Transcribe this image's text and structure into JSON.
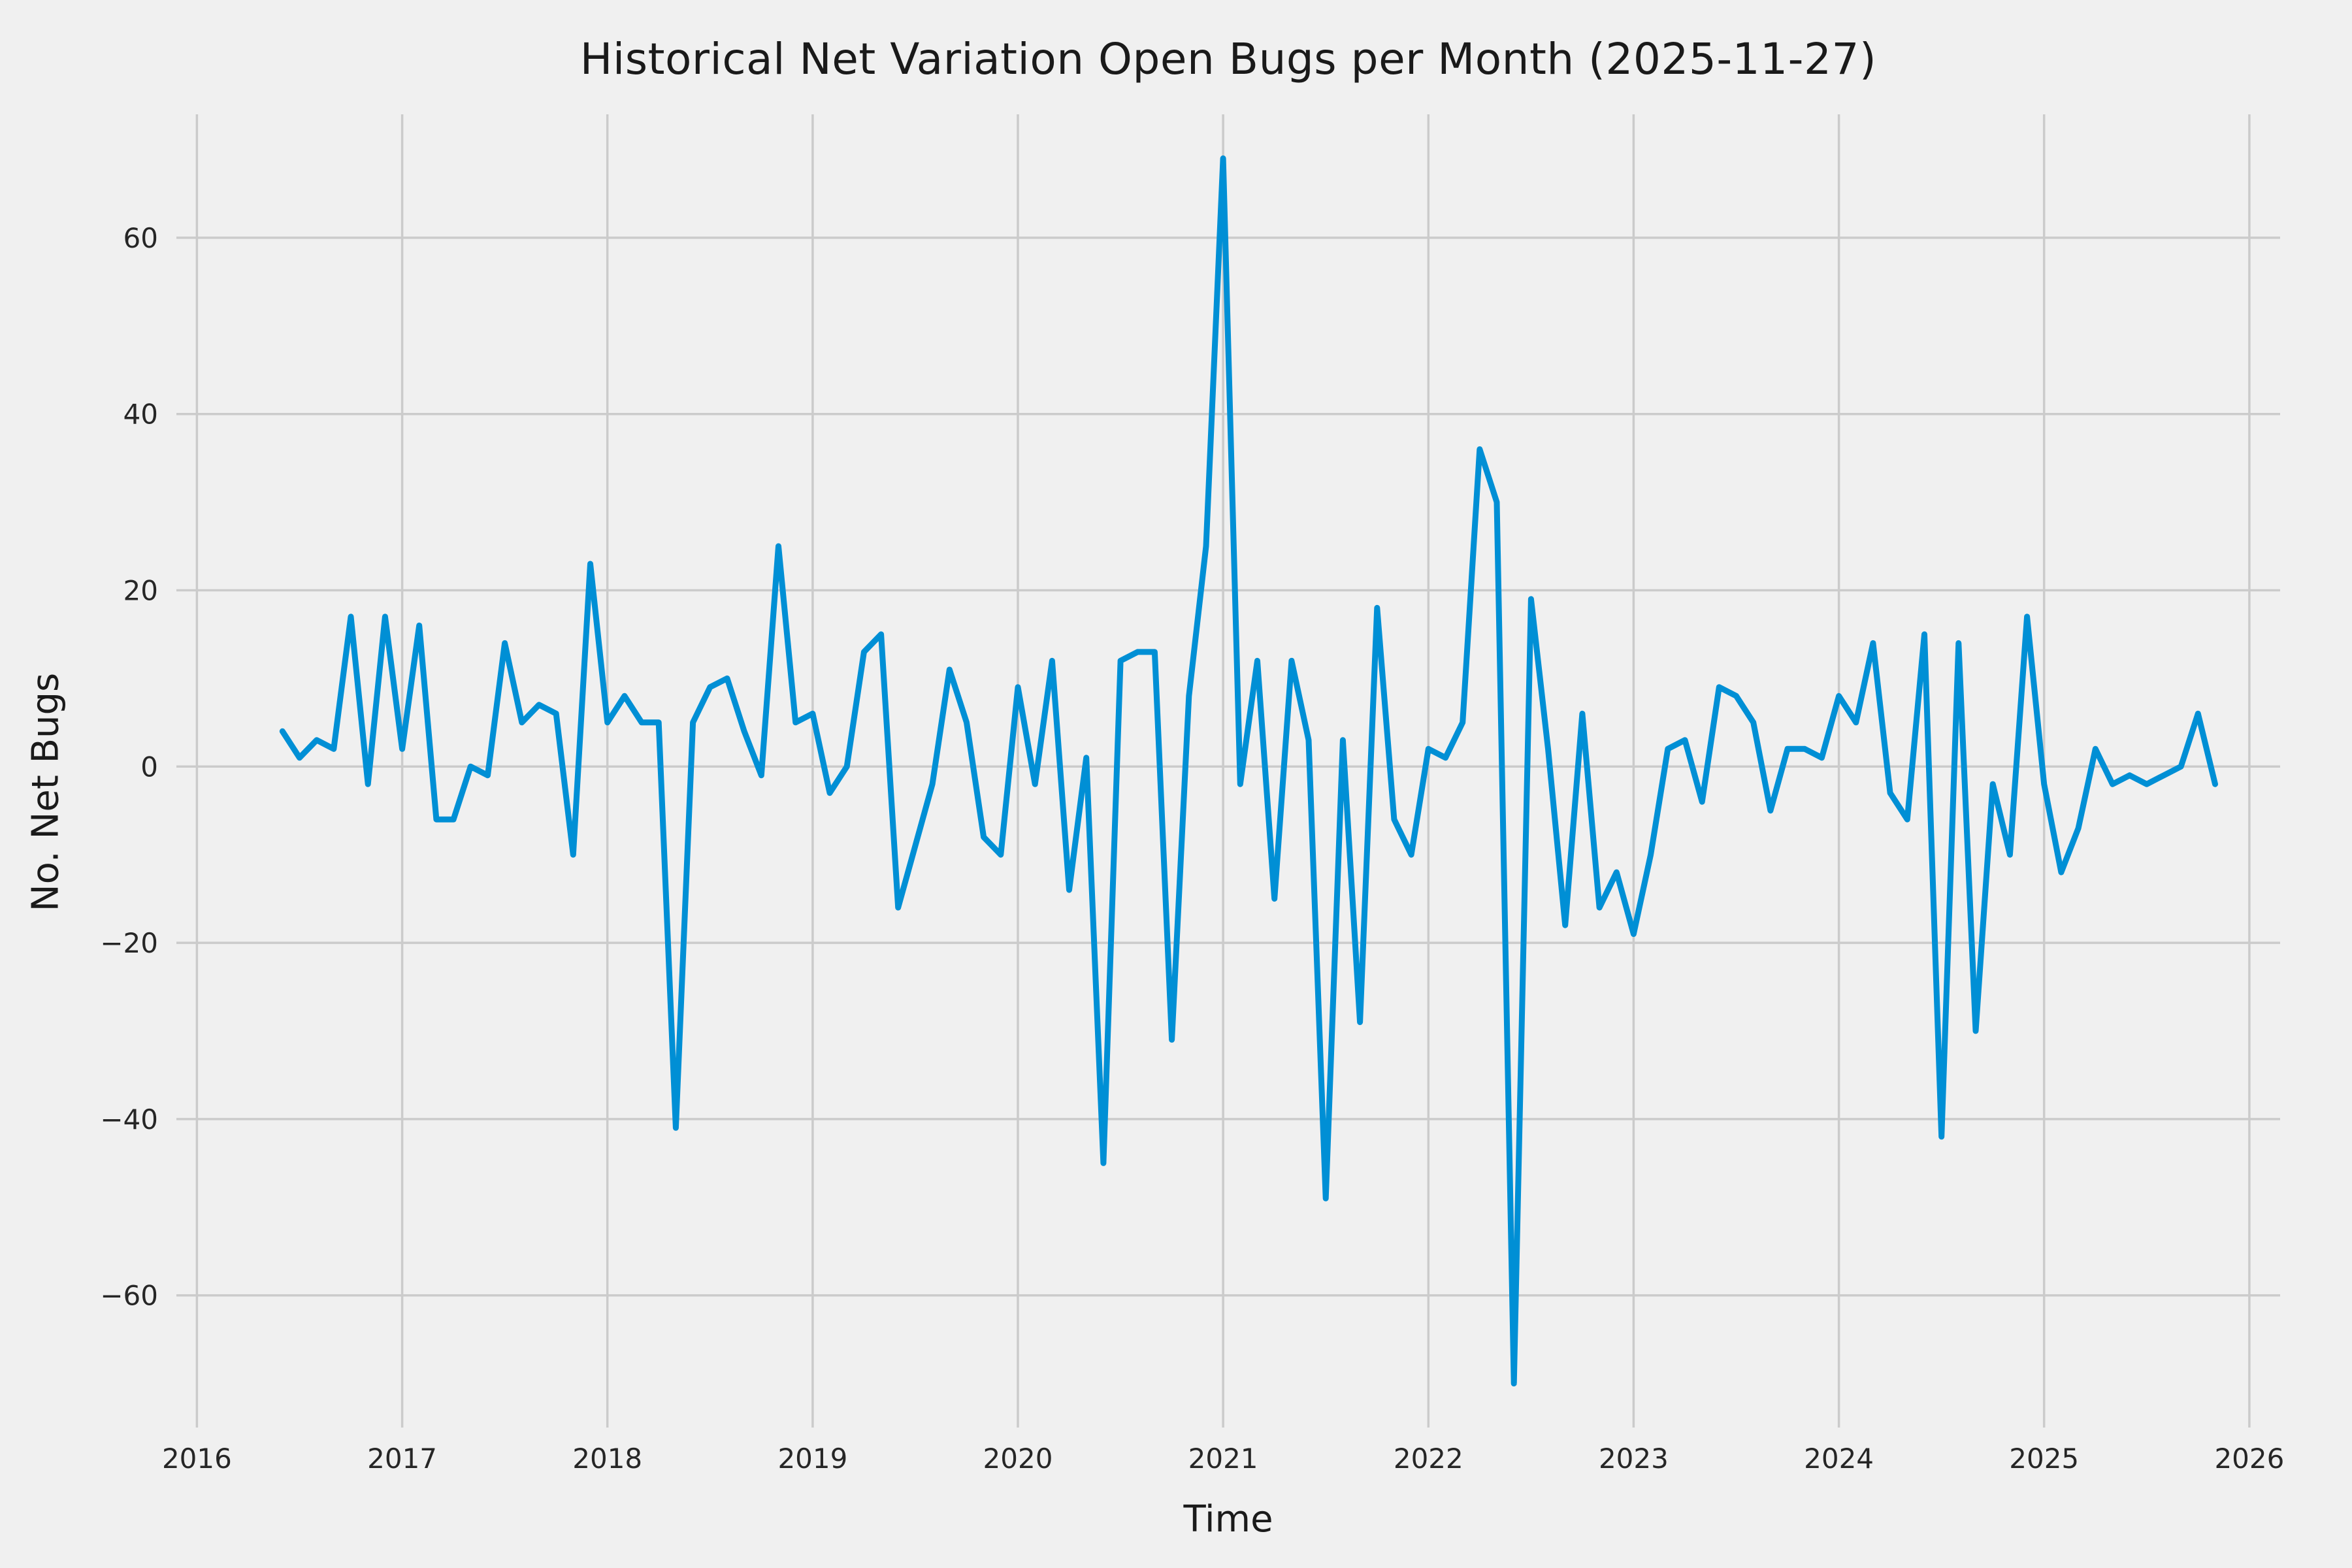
{
  "chart_data": {
    "type": "line",
    "title": "Historical Net Variation Open Bugs per Month (2025-11-27)",
    "xlabel": "Time",
    "ylabel": "No. Net Bugs",
    "legend": null,
    "grid": true,
    "style": {
      "line_color": "#008fd5",
      "line_width": 9,
      "background": "#f0f0f0",
      "grid_color": "#cbcbcb",
      "text_color": "#262626"
    },
    "x_ticks": [
      2016,
      2017,
      2018,
      2019,
      2020,
      2021,
      2022,
      2023,
      2024,
      2025,
      2026
    ],
    "y_ticks": [
      -60,
      -40,
      -20,
      0,
      20,
      40,
      60
    ],
    "xlim": [
      2015.9,
      2026.15
    ],
    "ylim": [
      -75,
      74
    ],
    "start": {
      "year": 2016,
      "month": 6
    },
    "frequency": "monthly",
    "values": [
      4,
      1,
      3,
      2,
      17,
      -2,
      17,
      2,
      16,
      -6,
      -6,
      0,
      -1,
      14,
      5,
      7,
      6,
      -10,
      23,
      5,
      8,
      5,
      5,
      -41,
      5,
      9,
      10,
      4,
      -1,
      25,
      5,
      6,
      -3,
      0,
      13,
      15,
      -16,
      -9,
      -2,
      11,
      5,
      -8,
      -10,
      9,
      -2,
      12,
      -14,
      1,
      -45,
      12,
      13,
      13,
      -31,
      8,
      25,
      69,
      -2,
      12,
      -15,
      12,
      3,
      -49,
      3,
      -29,
      18,
      -6,
      -10,
      2,
      1,
      5,
      36,
      30,
      -70,
      19,
      2,
      -18,
      6,
      -16,
      -12,
      -19,
      -10,
      2,
      3,
      -4,
      9,
      8,
      5,
      -5,
      2,
      2,
      1,
      8,
      5,
      14,
      -3,
      -6,
      15,
      -42,
      14,
      -30,
      -2,
      -10,
      17,
      -2,
      -12,
      -7,
      2,
      -2,
      -1,
      -2,
      -1,
      0,
      6,
      -2
    ]
  }
}
